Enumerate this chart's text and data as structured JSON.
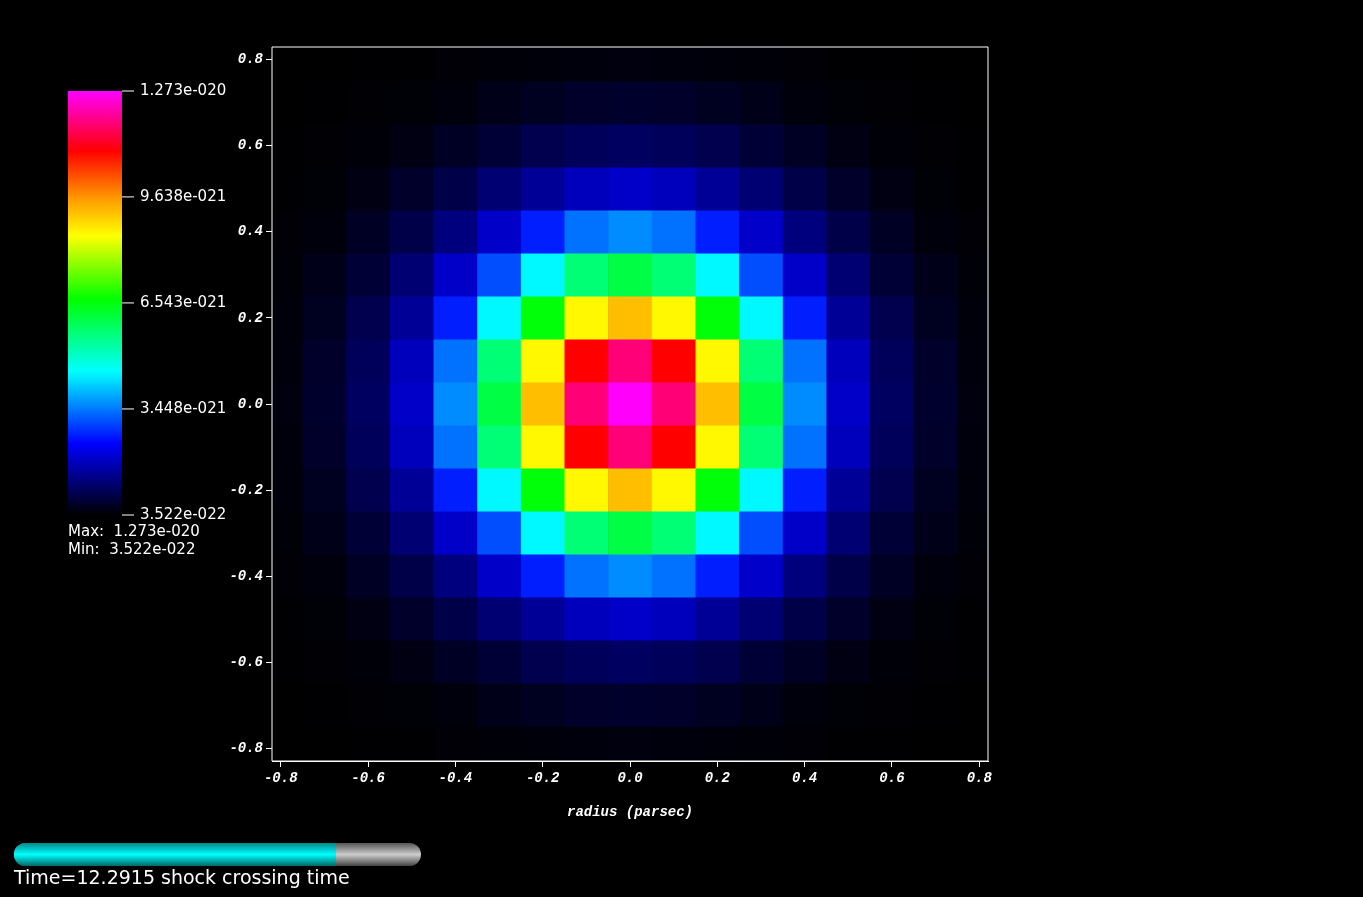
{
  "chart_data": {
    "type": "heatmap",
    "xlabel": "radius (parsec)",
    "x": [
      -0.8,
      -0.7,
      -0.6,
      -0.5,
      -0.4,
      -0.3,
      -0.2,
      -0.1,
      0,
      0.1,
      0.2,
      0.3,
      0.4,
      0.5,
      0.6,
      0.7,
      0.8
    ],
    "y": [
      0.8,
      0.7,
      0.6,
      0.5,
      0.4,
      0.3,
      0.2,
      0.1,
      0,
      -0.1,
      -0.2,
      -0.3,
      -0.4,
      -0.5,
      -0.6,
      -0.7,
      -0.8
    ],
    "xlim": [
      -0.82,
      0.82
    ],
    "ylim": [
      -0.83,
      0.83
    ],
    "xticks": [
      -0.8,
      -0.6,
      -0.4,
      -0.2,
      {
        "value": 0,
        "label": "0.0"
      },
      0.2,
      0.4,
      0.6,
      0.8
    ],
    "yticks": [
      -0.8,
      -0.6,
      -0.4,
      -0.2,
      {
        "value": 0,
        "label": "0.0"
      },
      0.2,
      0.4,
      0.6,
      0.8
    ],
    "clim": [
      3.522e-22,
      1.273e-20
    ],
    "cticks": [
      {
        "value": 3.522e-22,
        "label": "3.522e-022"
      },
      {
        "value": 3.448e-21,
        "label": "3.448e-021"
      },
      {
        "value": 6.543e-21,
        "label": "6.543e-021"
      },
      {
        "value": 9.638e-21,
        "label": "9.638e-021"
      },
      {
        "value": 1.273e-20,
        "label": "1.273e-020"
      }
    ],
    "grid": false,
    "annotations": [
      "Max:  1.273e-020",
      "Min:  3.522e-022",
      "Time=12.2915 shock crossing time"
    ],
    "cells": [
      [
        3.6e-22,
        3.6e-22,
        3.7e-22,
        3.8e-22,
        4e-22,
        4.2e-22,
        4.4e-22,
        4.6e-22,
        4.7e-22,
        4.6e-22,
        4.4e-22,
        4.2e-22,
        4e-22,
        3.8e-22,
        3.7e-22,
        3.6e-22,
        3.6e-22
      ],
      [
        3.6e-22,
        3.7e-22,
        3.9e-22,
        4.1e-22,
        4.6e-22,
        5.5e-22,
        6.2e-22,
        7e-22,
        7.2e-22,
        7e-22,
        6.2e-22,
        5.5e-22,
        4.6e-22,
        4.1e-22,
        3.9e-22,
        3.7e-22,
        3.6e-22
      ],
      [
        3.7e-22,
        3.9e-22,
        4.2e-22,
        5e-22,
        6.5e-22,
        8e-22,
        1e-21,
        1.1e-21,
        1.15e-21,
        1.1e-21,
        1e-21,
        8e-22,
        6.5e-22,
        5e-22,
        4.2e-22,
        3.9e-22,
        3.7e-22
      ],
      [
        3.8e-22,
        4.1e-22,
        5e-22,
        7e-22,
        9.5e-22,
        1.3e-21,
        1.6e-21,
        1.9e-21,
        2e-21,
        1.9e-21,
        1.6e-21,
        1.3e-21,
        9.5e-22,
        7e-22,
        5e-22,
        4.1e-22,
        3.8e-22
      ],
      [
        4e-22,
        4.6e-22,
        6.5e-22,
        9.5e-22,
        1.4e-21,
        2e-21,
        2.7e-21,
        3.4e-21,
        3.6e-21,
        3.4e-21,
        2.7e-21,
        2e-21,
        1.4e-21,
        9.5e-22,
        6.5e-22,
        4.6e-22,
        4e-22
      ],
      [
        4.2e-22,
        5.5e-22,
        8e-22,
        1.3e-21,
        2e-21,
        3.1e-21,
        4.5e-21,
        5.7e-21,
        6.1e-21,
        5.7e-21,
        4.5e-21,
        3.1e-21,
        2e-21,
        1.3e-21,
        8e-22,
        5.5e-22,
        4.2e-22
      ],
      [
        4.4e-22,
        6.2e-22,
        1e-21,
        1.6e-21,
        2.7e-21,
        4.5e-21,
        6.6e-21,
        8.6e-21,
        9.2e-21,
        8.6e-21,
        6.6e-21,
        4.5e-21,
        2.7e-21,
        1.6e-21,
        1e-21,
        6.2e-22,
        4.4e-22
      ],
      [
        4.6e-22,
        7e-22,
        1.1e-21,
        1.9e-21,
        3.4e-21,
        5.7e-21,
        8.6e-21,
        1.1e-20,
        1.18e-20,
        1.1e-20,
        8.6e-21,
        5.7e-21,
        3.4e-21,
        1.9e-21,
        1.1e-21,
        7e-22,
        4.6e-22
      ],
      [
        4.7e-22,
        7.2e-22,
        1.15e-21,
        2e-21,
        3.6e-21,
        6.1e-21,
        9.2e-21,
        1.18e-20,
        1.27e-20,
        1.18e-20,
        9.2e-21,
        6.1e-21,
        3.6e-21,
        2e-21,
        1.15e-21,
        7.2e-22,
        4.7e-22
      ],
      [
        4.6e-22,
        7e-22,
        1.1e-21,
        1.9e-21,
        3.4e-21,
        5.7e-21,
        8.6e-21,
        1.1e-20,
        1.18e-20,
        1.1e-20,
        8.6e-21,
        5.7e-21,
        3.4e-21,
        1.9e-21,
        1.1e-21,
        7e-22,
        4.6e-22
      ],
      [
        4.4e-22,
        6.2e-22,
        1e-21,
        1.6e-21,
        2.7e-21,
        4.5e-21,
        6.6e-21,
        8.6e-21,
        9.2e-21,
        8.6e-21,
        6.6e-21,
        4.5e-21,
        2.7e-21,
        1.6e-21,
        1e-21,
        6.2e-22,
        4.4e-22
      ],
      [
        4.2e-22,
        5.5e-22,
        8e-22,
        1.3e-21,
        2e-21,
        3.1e-21,
        4.5e-21,
        5.7e-21,
        6.1e-21,
        5.7e-21,
        4.5e-21,
        3.1e-21,
        2e-21,
        1.3e-21,
        8e-22,
        5.5e-22,
        4.2e-22
      ],
      [
        4e-22,
        4.6e-22,
        6.5e-22,
        9.5e-22,
        1.4e-21,
        2e-21,
        2.7e-21,
        3.4e-21,
        3.6e-21,
        3.4e-21,
        2.7e-21,
        2e-21,
        1.4e-21,
        9.5e-22,
        6.5e-22,
        4.6e-22,
        4e-22
      ],
      [
        3.8e-22,
        4.1e-22,
        5e-22,
        7e-22,
        9.5e-22,
        1.3e-21,
        1.6e-21,
        1.9e-21,
        2e-21,
        1.9e-21,
        1.6e-21,
        1.3e-21,
        9.5e-22,
        7e-22,
        5e-22,
        4.1e-22,
        3.8e-22
      ],
      [
        3.7e-22,
        3.9e-22,
        4.2e-22,
        5e-22,
        6.5e-22,
        8e-22,
        1e-21,
        1.1e-21,
        1.15e-21,
        1.1e-21,
        1e-21,
        8e-22,
        6.5e-22,
        5e-22,
        4.2e-22,
        3.9e-22,
        3.7e-22
      ],
      [
        3.6e-22,
        3.7e-22,
        3.9e-22,
        4.1e-22,
        4.6e-22,
        5.5e-22,
        6.2e-22,
        7e-22,
        7.2e-22,
        7e-22,
        6.2e-22,
        5.5e-22,
        4.6e-22,
        4.1e-22,
        3.9e-22,
        3.7e-22,
        3.6e-22
      ],
      [
        3.6e-22,
        3.6e-22,
        3.7e-22,
        3.8e-22,
        4e-22,
        4.2e-22,
        4.4e-22,
        4.6e-22,
        4.7e-22,
        4.6e-22,
        4.4e-22,
        4.2e-22,
        4e-22,
        3.8e-22,
        3.7e-22,
        3.6e-22,
        3.6e-22
      ]
    ]
  }
}
